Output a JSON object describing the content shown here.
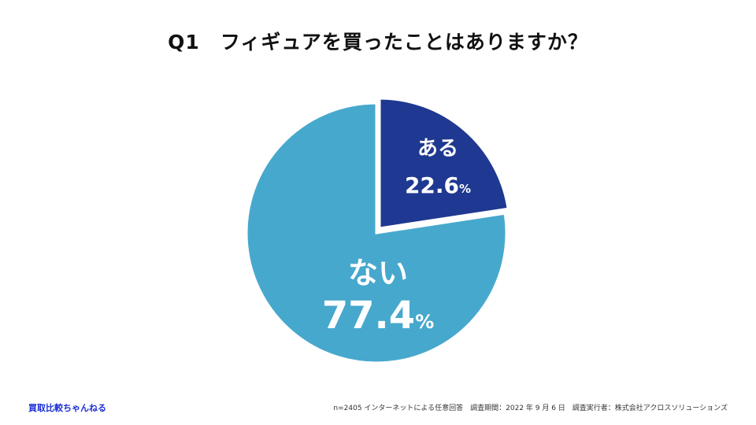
{
  "chart_data": {
    "type": "pie",
    "title": "Q1　フィギュアを買ったことはありますか？",
    "slices": [
      {
        "label": "ある",
        "value": 22.6,
        "display": "22.6",
        "unit": "%",
        "color": "#1f3891",
        "exploded": true
      },
      {
        "label": "ない",
        "value": 77.4,
        "display": "77.4",
        "unit": "%",
        "color": "#47a8cd",
        "exploded": false
      }
    ]
  },
  "footer": {
    "brand": "買取比較ちゃんねる",
    "note": "n=2405 インターネットによる任意回答　調査期間：2022 年 9 月 6 日　調査実行者：株式会社アクロスソリューションズ"
  }
}
